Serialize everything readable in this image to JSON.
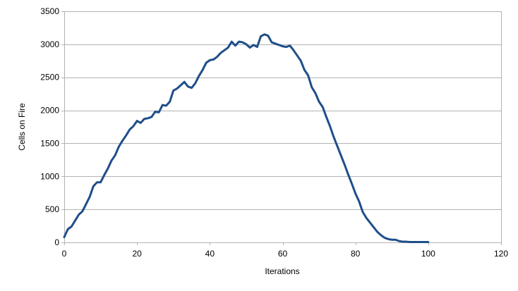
{
  "chart_data": {
    "type": "line",
    "title": "",
    "xlabel": "Iterations",
    "ylabel": "Cells on Fire",
    "xlim": [
      0,
      120
    ],
    "ylim": [
      0,
      3500
    ],
    "xticks": [
      0,
      20,
      40,
      60,
      80,
      100,
      120
    ],
    "yticks": [
      0,
      500,
      1000,
      1500,
      2000,
      2500,
      3000,
      3500
    ],
    "grid": true,
    "legend": "none",
    "series_color": "#1f4e89",
    "grid_color": "#b3b3b3",
    "x": [
      0,
      1,
      2,
      3,
      4,
      5,
      6,
      7,
      8,
      9,
      10,
      11,
      12,
      13,
      14,
      15,
      16,
      17,
      18,
      19,
      20,
      21,
      22,
      23,
      24,
      25,
      26,
      27,
      28,
      29,
      30,
      31,
      32,
      33,
      34,
      35,
      36,
      37,
      38,
      39,
      40,
      41,
      42,
      43,
      44,
      45,
      46,
      47,
      48,
      49,
      50,
      51,
      52,
      53,
      54,
      55,
      56,
      57,
      58,
      59,
      60,
      61,
      62,
      63,
      64,
      65,
      66,
      67,
      68,
      69,
      70,
      71,
      72,
      73,
      74,
      75,
      76,
      77,
      78,
      79,
      80,
      81,
      82,
      83,
      84,
      85,
      86,
      87,
      88,
      89,
      90,
      91,
      92,
      93,
      94,
      95,
      96,
      97,
      98,
      99,
      100
    ],
    "series": [
      {
        "values": [
          80,
          200,
          240,
          330,
          420,
          470,
          580,
          690,
          850,
          910,
          910,
          1020,
          1120,
          1240,
          1320,
          1450,
          1540,
          1620,
          1710,
          1760,
          1840,
          1810,
          1870,
          1880,
          1900,
          1980,
          1970,
          2080,
          2070,
          2130,
          2300,
          2330,
          2380,
          2430,
          2360,
          2340,
          2410,
          2520,
          2610,
          2720,
          2760,
          2770,
          2810,
          2870,
          2910,
          2950,
          3040,
          2980,
          3040,
          3030,
          3000,
          2950,
          2990,
          2960,
          3120,
          3150,
          3130,
          3030,
          3010,
          2990,
          2970,
          2960,
          2980,
          2910,
          2830,
          2750,
          2610,
          2530,
          2350,
          2260,
          2130,
          2050,
          1900,
          1760,
          1600,
          1460,
          1320,
          1180,
          1030,
          890,
          740,
          620,
          460,
          370,
          300,
          230,
          160,
          110,
          70,
          50,
          40,
          40,
          20,
          10,
          10,
          5,
          5,
          5,
          5,
          5,
          5
        ]
      }
    ]
  }
}
